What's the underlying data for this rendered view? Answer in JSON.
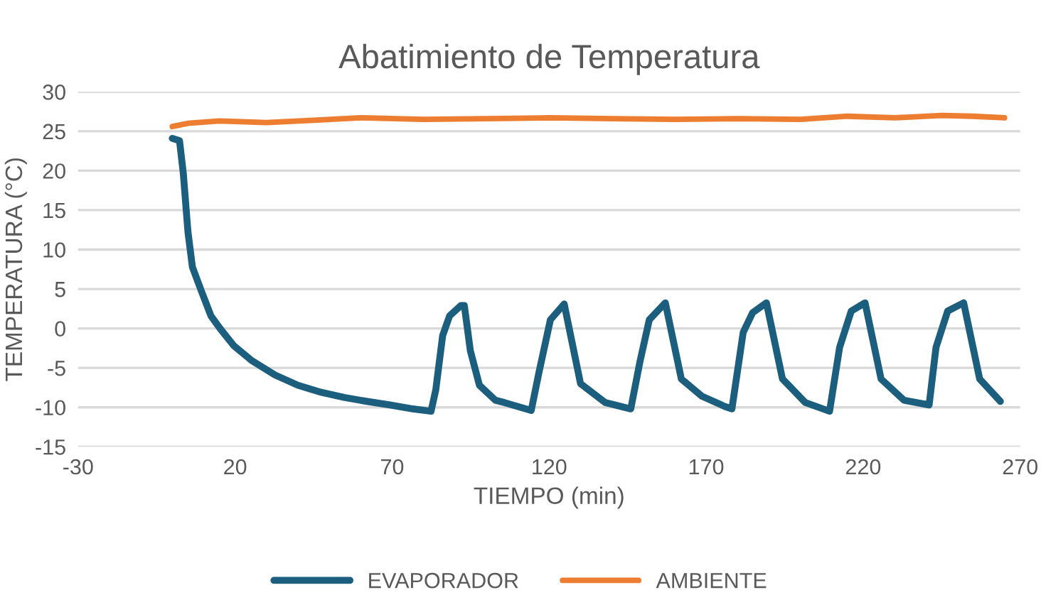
{
  "chart_data": {
    "type": "line",
    "title": "Abatimiento de Temperatura",
    "xlabel": "TIEMPO (min)",
    "ylabel": "TEMPERATURA (°C)",
    "xlim": [
      -30,
      270
    ],
    "xticks": [
      -30,
      20,
      70,
      120,
      170,
      220,
      270
    ],
    "ylim": [
      -15,
      30
    ],
    "yticks": [
      -15,
      -10,
      -5,
      0,
      5,
      10,
      15,
      20,
      25,
      30
    ],
    "grid": "y",
    "legend": "bottom",
    "marker": "none",
    "line_style": "solid",
    "series": [
      {
        "name": "EVAPORADOR",
        "color": "#1b5e7e",
        "x": [
          0,
          2.3,
          3.5,
          5,
          6.4,
          9.3,
          12.3,
          15.2,
          19.6,
          25.4,
          32.7,
          40,
          47.4,
          54.7,
          62,
          69.3,
          76.6,
          82.4,
          83.9,
          86.1,
          88.3,
          91.9,
          93,
          94.9,
          97.8,
          102.9,
          105.8,
          114.3,
          116.8,
          120.4,
          124.8,
          130,
          137.9,
          146,
          148.9,
          151.9,
          157,
          162.1,
          168.7,
          176,
          178.2,
          181.8,
          184.8,
          189.2,
          194.3,
          201.6,
          209.3,
          212.5,
          216.2,
          220.6,
          225.7,
          233,
          241,
          243.2,
          246.9,
          252,
          257.1,
          263.7
        ],
        "values": [
          24.1,
          23.8,
          19.7,
          12.2,
          7.8,
          4.7,
          1.6,
          0,
          -2.2,
          -4.1,
          -5.9,
          -7.2,
          -8.1,
          -8.75,
          -9.25,
          -9.7,
          -10.2,
          -10.5,
          -7.8,
          -0.9,
          1.6,
          2.9,
          2.9,
          -2.8,
          -7.2,
          -9.1,
          -9.4,
          -10.4,
          -5.5,
          1.1,
          3.1,
          -7,
          -9.4,
          -10.2,
          -4.25,
          1.1,
          3.25,
          -6.4,
          -8.6,
          -9.9,
          -10.2,
          -0.5,
          2,
          3.25,
          -6.4,
          -9.4,
          -10.5,
          -2.4,
          2.2,
          3.25,
          -6.4,
          -9.1,
          -9.7,
          -2.4,
          2.2,
          3.25,
          -6.4,
          -9.25
        ]
      },
      {
        "name": "AMBIENTE",
        "color": "#ed7d31",
        "x": [
          0,
          5,
          15,
          30,
          45,
          60,
          80,
          100,
          120,
          140,
          160,
          180,
          200,
          215,
          230,
          245,
          255,
          265
        ],
        "values": [
          25.6,
          26,
          26.3,
          26.1,
          26.4,
          26.7,
          26.5,
          26.6,
          26.7,
          26.6,
          26.5,
          26.6,
          26.5,
          26.9,
          26.7,
          27,
          26.9,
          26.7
        ]
      }
    ]
  }
}
